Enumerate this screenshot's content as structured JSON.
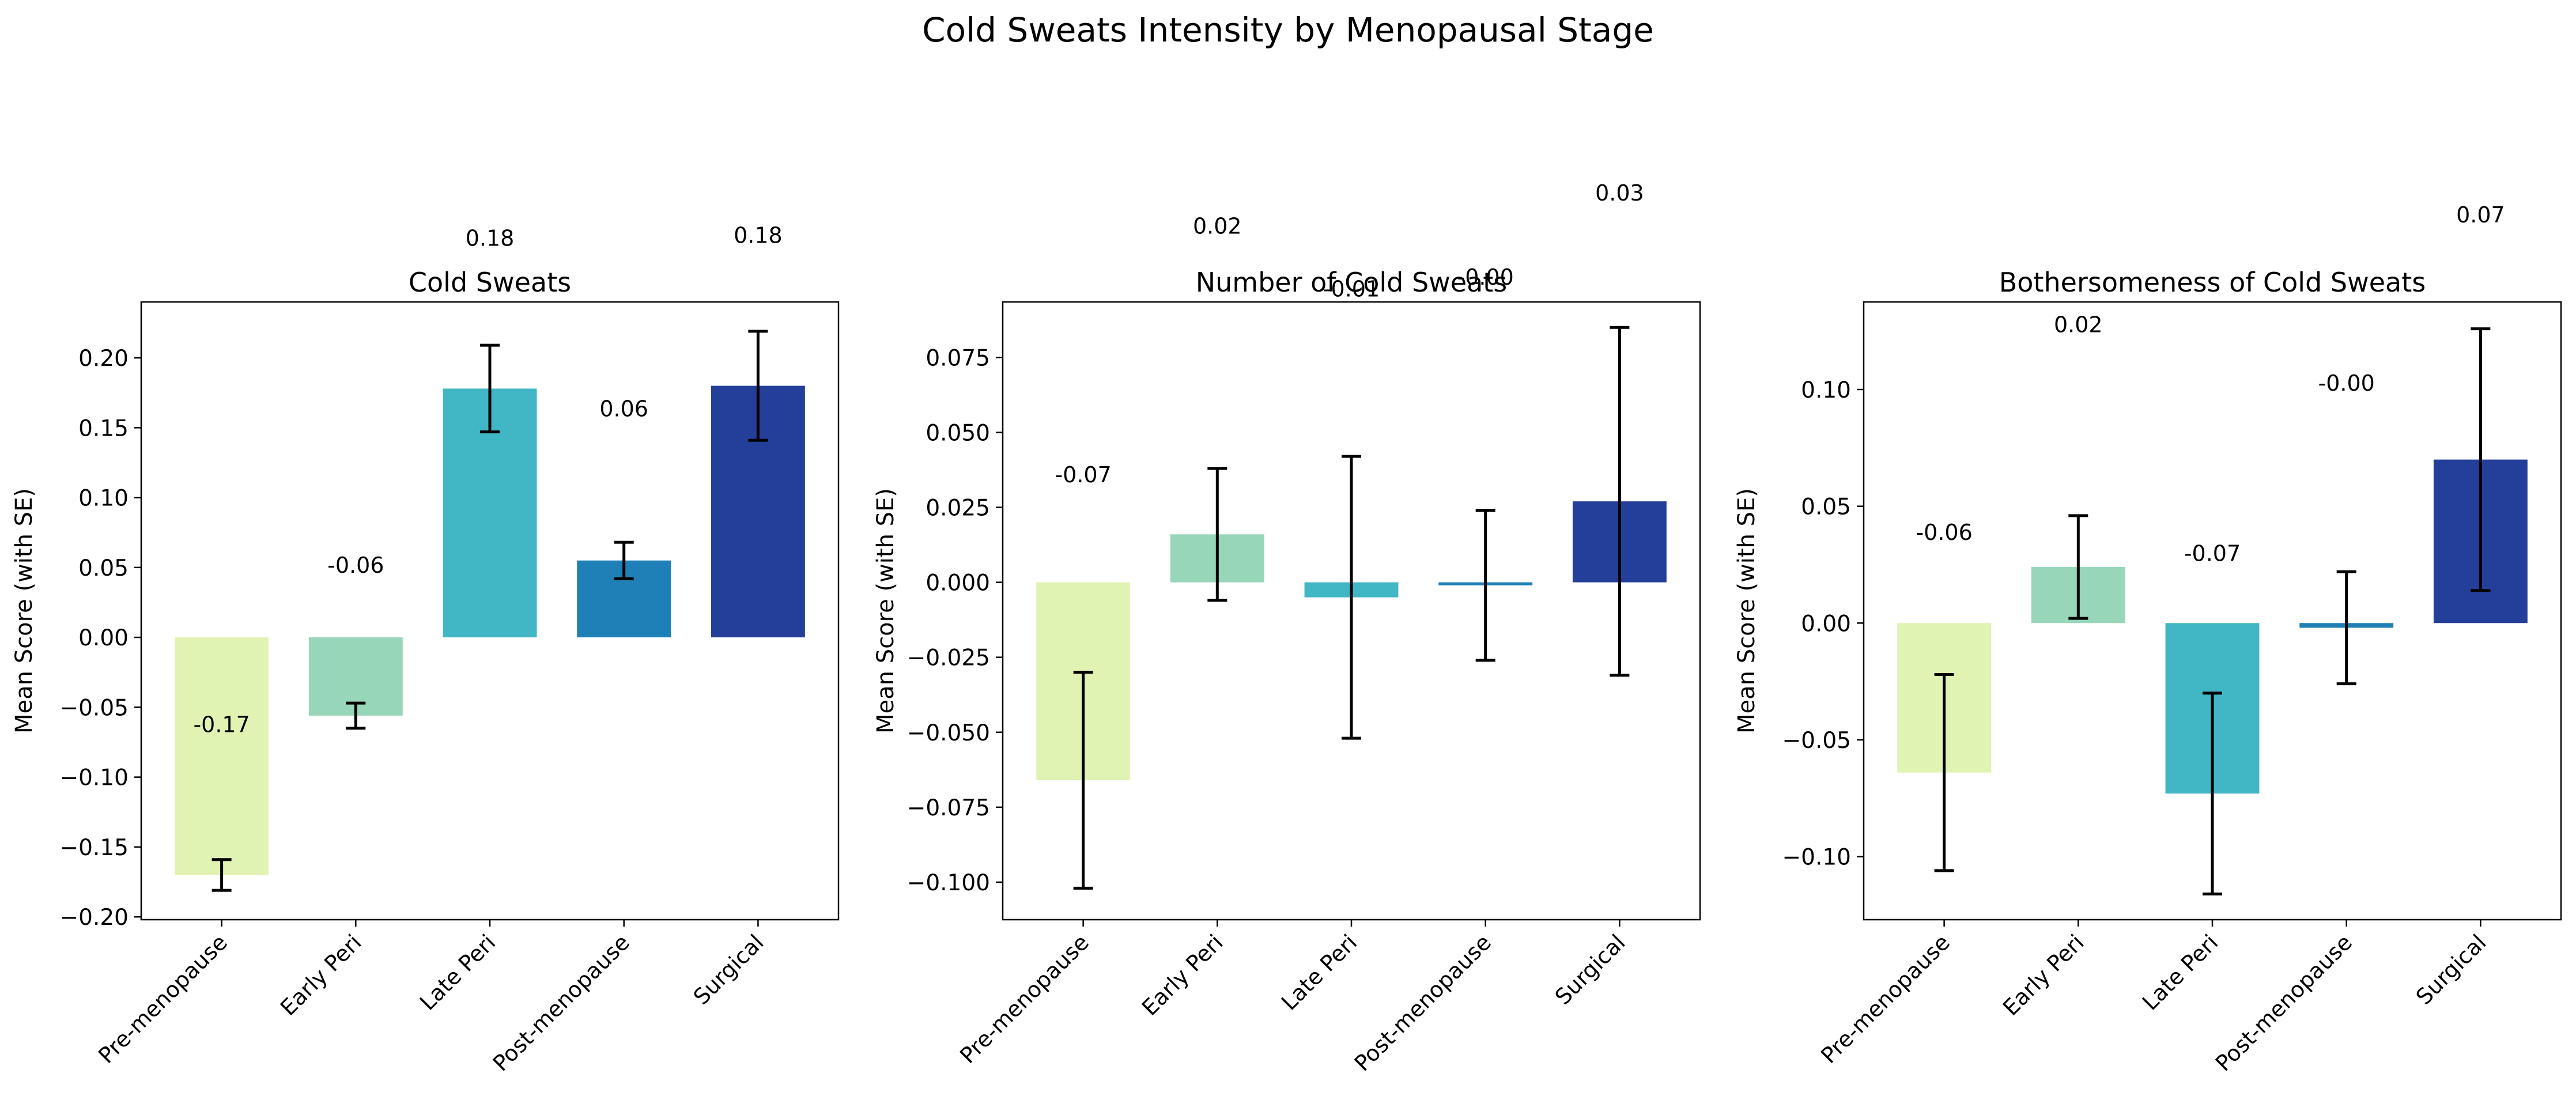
{
  "figure": {
    "title": "Cold Sweats Intensity by Menopausal Stage"
  },
  "colors": {
    "pre_menopause": "#e0f3b2",
    "early_peri": "#97d6b9",
    "late_peri": "#41b6c4",
    "post_menopause": "#1f80b8",
    "surgical": "#243f99"
  },
  "chart_data": [
    {
      "type": "bar",
      "title": "Cold Sweats",
      "ylabel": "Mean Score (with SE)",
      "xlabel": "",
      "ylim": [
        -0.202,
        0.24
      ],
      "yticks": [
        -0.2,
        -0.15,
        -0.1,
        -0.05,
        0.0,
        0.05,
        0.1,
        0.15,
        0.2
      ],
      "ytick_labels": [
        "−0.20",
        "−0.15",
        "−0.10",
        "−0.05",
        "0.00",
        "0.05",
        "0.10",
        "0.15",
        "0.20"
      ],
      "categories": [
        "Pre-menopause",
        "Early Peri",
        "Late Peri",
        "Post-menopause",
        "Surgical"
      ],
      "values": [
        -0.17,
        -0.056,
        0.178,
        0.055,
        0.18
      ],
      "errors": [
        0.011,
        0.009,
        0.031,
        0.013,
        0.039
      ],
      "data_labels": [
        "-0.17",
        "-0.06",
        "0.18",
        "0.06",
        "0.18"
      ],
      "data_label_y": [
        -0.062,
        0.052,
        0.286,
        0.164,
        0.288
      ],
      "grid": false,
      "legend": "none"
    },
    {
      "type": "bar",
      "title": "Number of Cold Sweats",
      "ylabel": "Mean Score (with SE)",
      "xlabel": "",
      "ylim": [
        -0.1125,
        0.0935
      ],
      "yticks": [
        -0.1,
        -0.075,
        -0.05,
        -0.025,
        0.0,
        0.025,
        0.05,
        0.075
      ],
      "ytick_labels": [
        "−0.100",
        "−0.075",
        "−0.050",
        "−0.025",
        "0.000",
        "0.025",
        "0.050",
        "0.075"
      ],
      "categories": [
        "Pre-menopause",
        "Early Peri",
        "Late Peri",
        "Post-menopause",
        "Surgical"
      ],
      "values": [
        -0.066,
        0.016,
        -0.005,
        -0.001,
        0.027
      ],
      "errors": [
        0.036,
        0.022,
        0.047,
        0.025,
        0.058
      ],
      "data_labels": [
        "-0.07",
        "0.02",
        "-0.01",
        "-0.00",
        "0.03"
      ],
      "data_label_y": [
        0.036,
        0.119,
        0.098,
        0.102,
        0.13
      ],
      "grid": false,
      "legend": "none"
    },
    {
      "type": "bar",
      "title": "Bothersomeness of Cold Sweats",
      "ylabel": "Mean Score (with SE)",
      "xlabel": "",
      "ylim": [
        -0.127,
        0.1375
      ],
      "yticks": [
        -0.1,
        -0.05,
        0.0,
        0.05,
        0.1
      ],
      "ytick_labels": [
        "−0.10",
        "−0.05",
        "0.00",
        "0.05",
        "0.10"
      ],
      "categories": [
        "Pre-menopause",
        "Early Peri",
        "Late Peri",
        "Post-menopause",
        "Surgical"
      ],
      "values": [
        -0.064,
        0.024,
        -0.073,
        -0.002,
        0.07
      ],
      "errors": [
        0.042,
        0.022,
        0.043,
        0.024,
        0.056
      ],
      "data_labels": [
        "-0.06",
        "0.02",
        "-0.07",
        "-0.00",
        "0.07"
      ],
      "data_label_y": [
        0.039,
        0.128,
        0.03,
        0.103,
        0.175
      ],
      "grid": false,
      "legend": "none"
    }
  ]
}
